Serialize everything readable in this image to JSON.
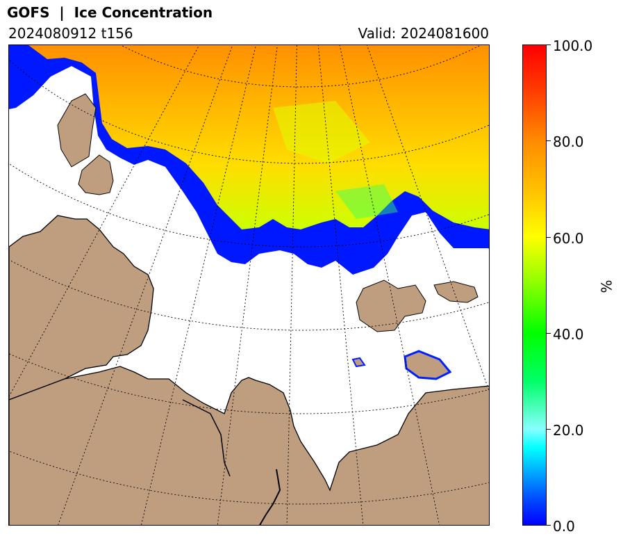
{
  "header": {
    "title": "GOFS  |  Ice Concentration",
    "run": "2024080912 t156",
    "valid": "Valid: 2024081600"
  },
  "map": {
    "icon": "polar-projection-map",
    "colors": {
      "land": "#bf9e7f",
      "ocean": "#ffffff",
      "coast": "#000000",
      "grid": "#000000"
    }
  },
  "colorbar": {
    "unit": "%",
    "min": 0,
    "max": 100,
    "ticks": [
      "0.0",
      "20.0",
      "40.0",
      "60.0",
      "80.0",
      "100.0"
    ],
    "colors": [
      "#0000ff",
      "#00ffff",
      "#00ff00",
      "#ffff00",
      "#ff8c00",
      "#ff0000"
    ]
  }
}
